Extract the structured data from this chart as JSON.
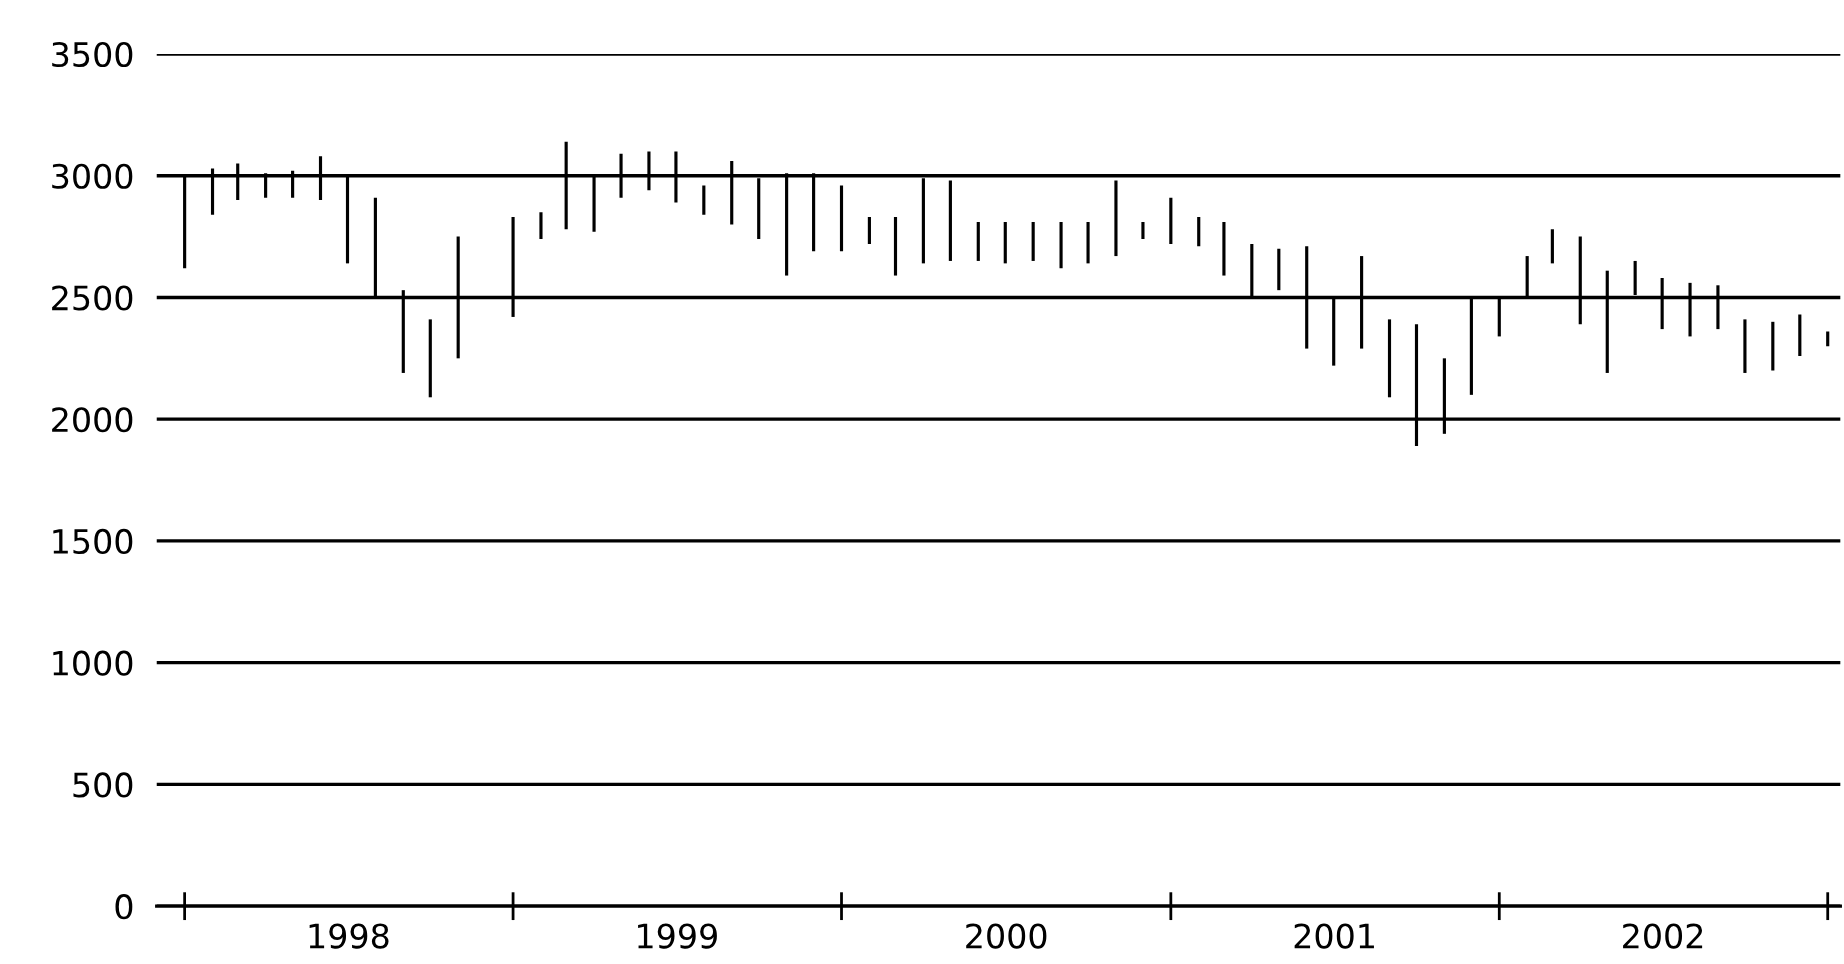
{
  "chart_data": {
    "type": "bar",
    "color": "#000000",
    "x": [
      "1998-01",
      "1998-02",
      "1998-03",
      "1998-04",
      "1998-05",
      "1998-06",
      "1998-07",
      "1998-08",
      "1998-09",
      "1998-10",
      "1998-11",
      "1998-12",
      "1999-01",
      "1999-02",
      "1999-03",
      "1999-04",
      "1999-05",
      "1999-06",
      "1999-07",
      "1999-08",
      "1999-09",
      "1999-10",
      "1999-11",
      "1999-12",
      "2000-01",
      "2000-02",
      "2000-03",
      "2000-04",
      "2000-05",
      "2000-06",
      "2000-07",
      "2000-08",
      "2000-09",
      "2000-10",
      "2000-11",
      "2000-12",
      "2001-01",
      "2001-02",
      "2001-03",
      "2001-04",
      "2001-05",
      "2001-06",
      "2001-07",
      "2001-08",
      "2001-09",
      "2001-10",
      "2001-11",
      "2001-12",
      "2002-01",
      "2002-02",
      "2002-03",
      "2002-04",
      "2002-05",
      "2002-06",
      "2002-07",
      "2002-08",
      "2002-09",
      "2002-10",
      "2002-11",
      "2002-12",
      "2003-01"
    ],
    "base": [
      2620,
      2840,
      2900,
      2910,
      2910,
      2900,
      2640,
      2500,
      2190,
      2090,
      2250,
      null,
      2420,
      2740,
      2780,
      2770,
      2910,
      2940,
      2890,
      2840,
      2800,
      2740,
      2590,
      2690,
      2690,
      2720,
      2590,
      2640,
      2650,
      2650,
      2640,
      2650,
      2620,
      2640,
      2670,
      2740,
      2720,
      2710,
      2590,
      2500,
      2530,
      2290,
      2220,
      2290,
      2090,
      1890,
      1940,
      2100,
      2340,
      2500,
      2640,
      2390,
      2190,
      2510,
      2370,
      2340,
      2370,
      2190,
      2200,
      2260,
      2300
    ],
    "values": [
      380,
      190,
      150,
      100,
      110,
      180,
      360,
      410,
      340,
      320,
      500,
      null,
      410,
      110,
      360,
      230,
      180,
      160,
      210,
      120,
      260,
      250,
      420,
      320,
      270,
      110,
      240,
      350,
      330,
      160,
      170,
      160,
      190,
      170,
      310,
      70,
      190,
      120,
      220,
      220,
      170,
      420,
      280,
      380,
      320,
      500,
      310,
      400,
      160,
      170,
      140,
      360,
      420,
      140,
      210,
      220,
      180,
      220,
      200,
      170,
      60
    ],
    "xlim": [
      "1997-12-01",
      "2003-01-15"
    ],
    "xticks": [
      {
        "value": "1998-01-01",
        "label": null
      },
      {
        "value": "1998-07-02",
        "label": "1998"
      },
      {
        "value": "1999-01-01",
        "label": null
      },
      {
        "value": "1999-07-02",
        "label": "1999"
      },
      {
        "value": "2000-01-01",
        "label": null
      },
      {
        "value": "2000-07-02",
        "label": "2000"
      },
      {
        "value": "2001-01-01",
        "label": null
      },
      {
        "value": "2001-07-02",
        "label": "2001"
      },
      {
        "value": "2002-01-01",
        "label": null
      },
      {
        "value": "2002-07-02",
        "label": "2002"
      },
      {
        "value": "2003-01-01",
        "label": null
      }
    ],
    "ylim": [
      0,
      3500
    ],
    "yticks": [
      0,
      500,
      1000,
      1500,
      2000,
      2500,
      3000,
      3500
    ],
    "grid": "y"
  }
}
